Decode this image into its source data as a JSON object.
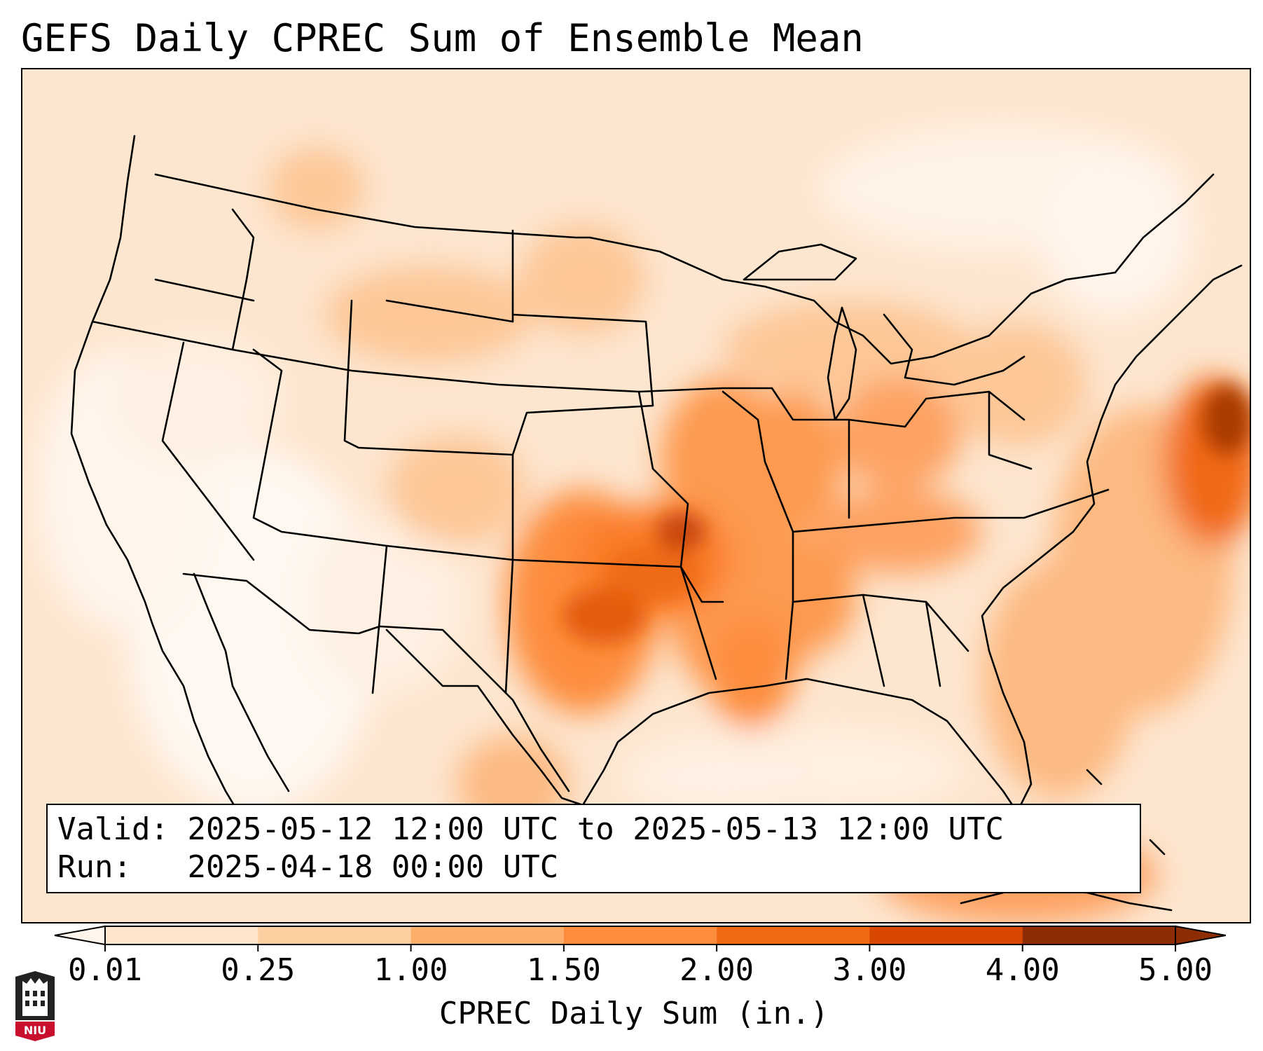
{
  "title": "GEFS Daily CPREC Sum of Ensemble Mean",
  "valid_label": "Valid:",
  "valid_range": "2025-05-12 12:00 UTC to 2025-05-13 12:00 UTC",
  "run_label": "Run:",
  "run_time": "2025-04-18 00:00 UTC",
  "colorbar": {
    "label": "CPREC Daily Sum (in.)",
    "ticks": [
      "0.01",
      "0.25",
      "1.00",
      "1.50",
      "2.00",
      "3.00",
      "4.00",
      "5.00"
    ],
    "colors": [
      "#fff5eb",
      "#fee6ce",
      "#fdd0a2",
      "#fdae6b",
      "#fd8d3c",
      "#f16913",
      "#d94801",
      "#8c2d04"
    ],
    "extend": "both"
  },
  "logo_text": "NIU",
  "accent_colors": {
    "low": "#fff5eb",
    "high": "#8c2d04",
    "border": "#000000"
  }
}
